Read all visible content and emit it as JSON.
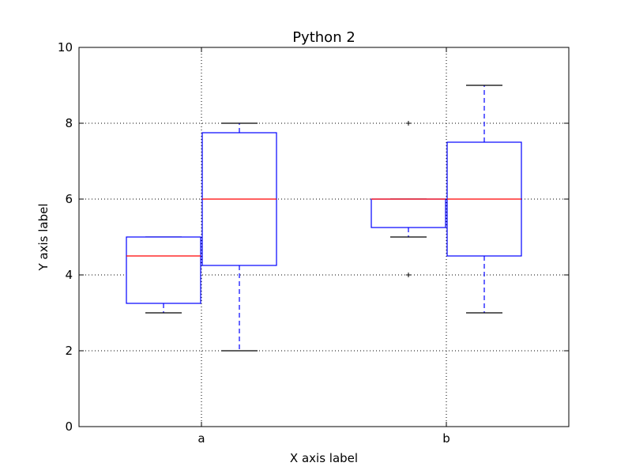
{
  "chart_data": {
    "type": "box",
    "title": "Python 2",
    "xlabel": "X axis label",
    "ylabel": "Y axis label",
    "ylim": [
      0,
      10
    ],
    "yticks": [
      "0",
      "2",
      "4",
      "6",
      "8",
      "10"
    ],
    "categories": [
      "a",
      "b"
    ],
    "grid": true,
    "boxes": [
      {
        "category": "a",
        "whisker_low": 3,
        "q1": 3.25,
        "median": 4.5,
        "q3": 5,
        "whisker_high": 5,
        "outliers": []
      },
      {
        "category": "a",
        "whisker_low": 2,
        "q1": 4.25,
        "median": 6,
        "q3": 7.75,
        "whisker_high": 8,
        "outliers": []
      },
      {
        "category": "b",
        "whisker_low": 5,
        "q1": 5.25,
        "median": 6,
        "q3": 6,
        "whisker_high": 6,
        "outliers": [
          4,
          8
        ]
      },
      {
        "category": "b",
        "whisker_low": 3,
        "q1": 4.5,
        "median": 6,
        "q3": 7.5,
        "whisker_high": 9,
        "outliers": []
      }
    ],
    "colors": {
      "box": "#0000ff",
      "median": "#ff0000",
      "cap": "#000000",
      "grid": "#000000"
    }
  }
}
